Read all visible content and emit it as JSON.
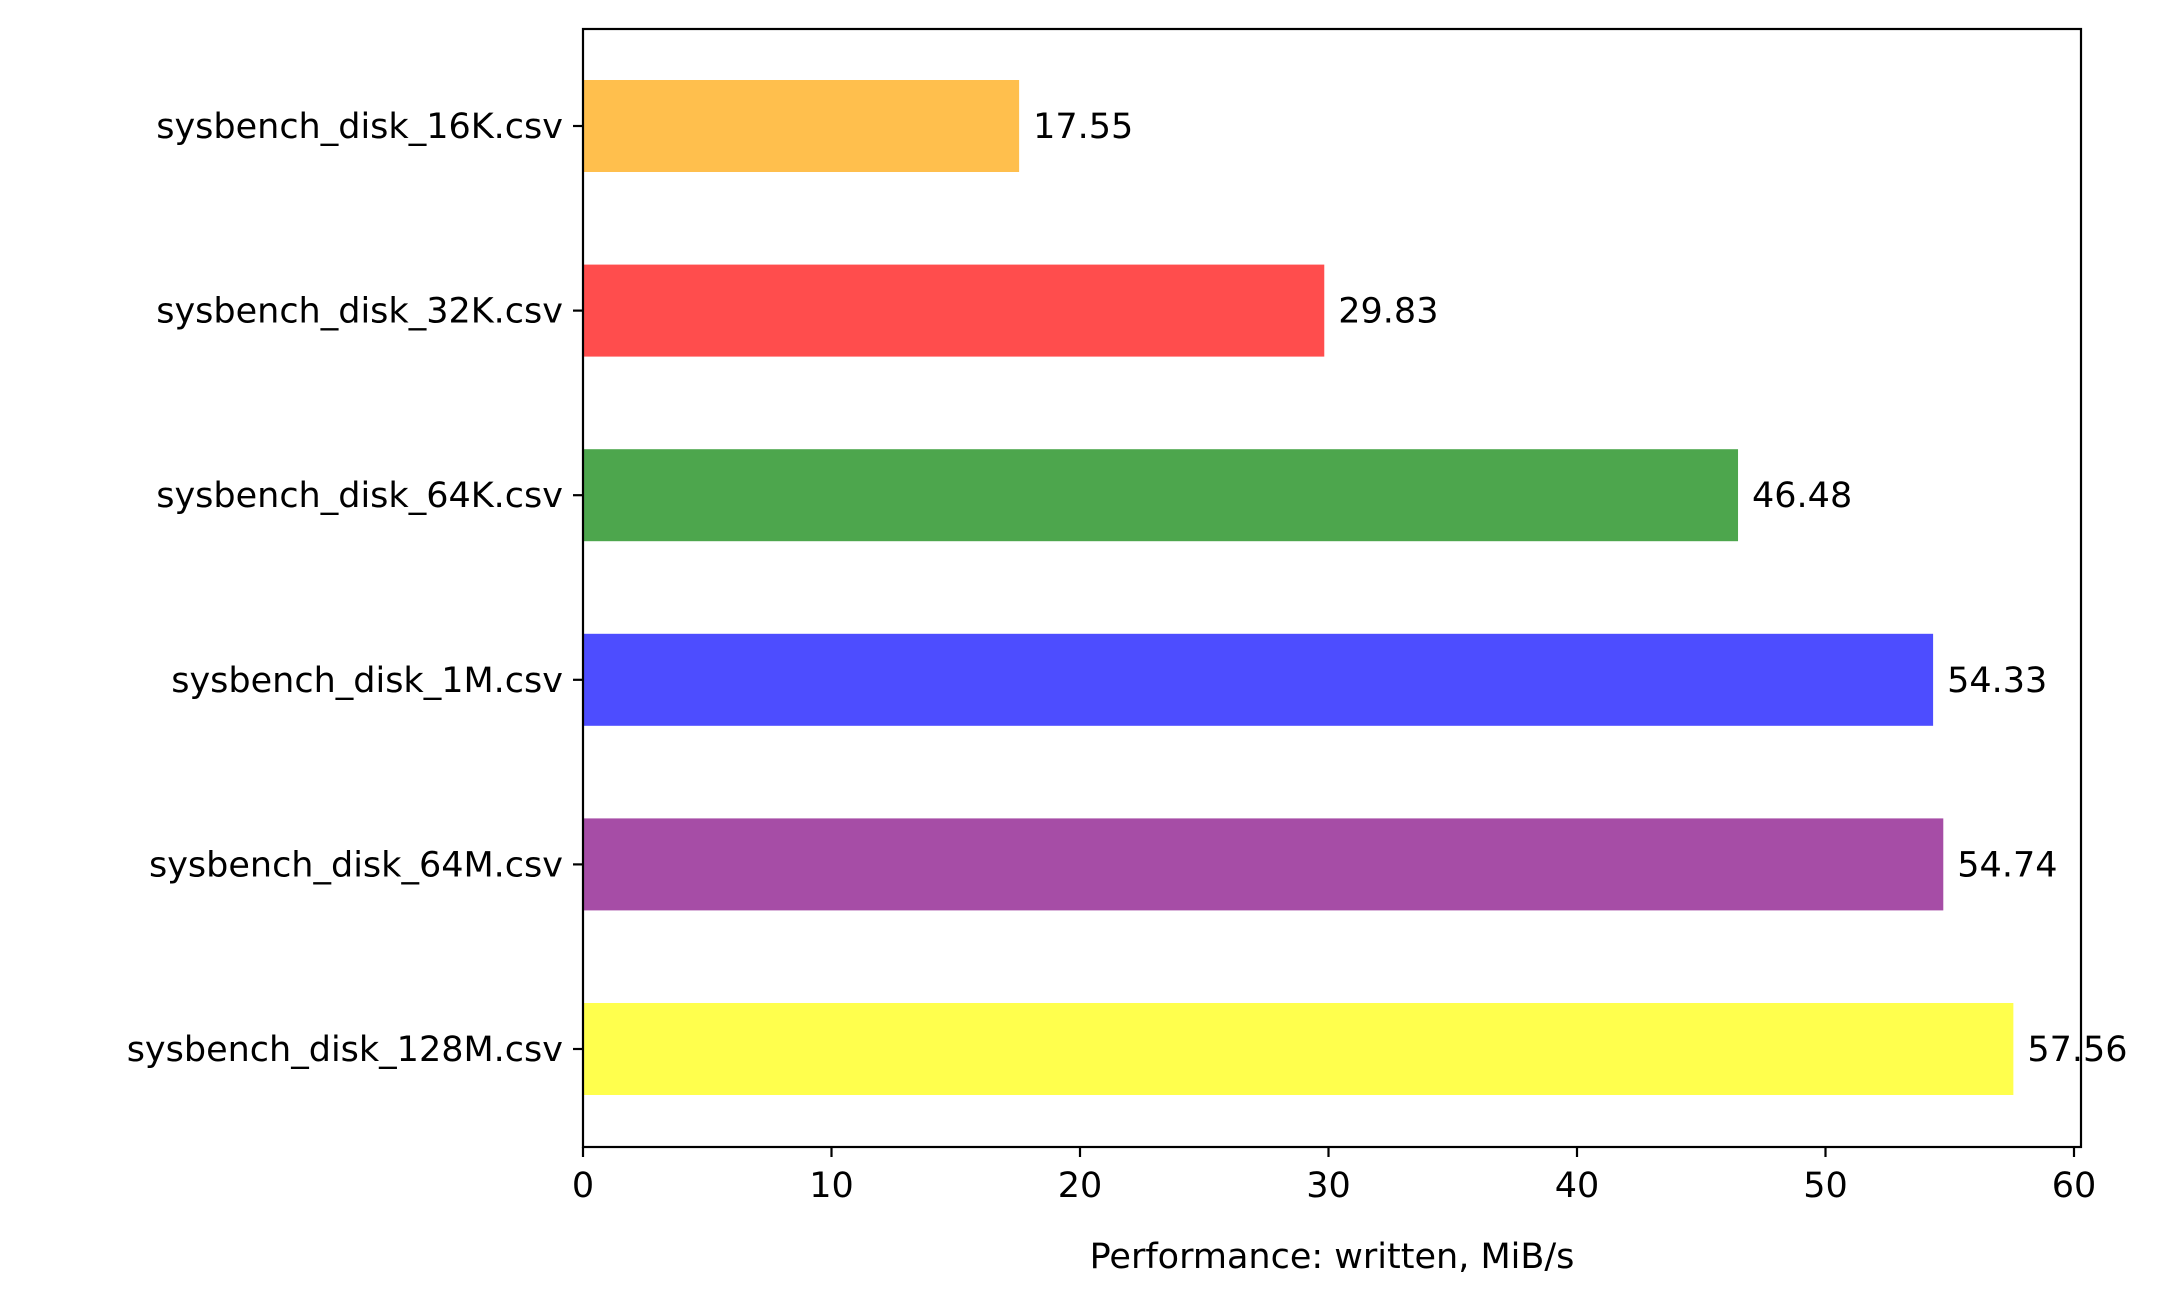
{
  "chart_data": {
    "type": "bar",
    "orientation": "horizontal",
    "categories": [
      "sysbench_disk_16K.csv",
      "sysbench_disk_32K.csv",
      "sysbench_disk_64K.csv",
      "sysbench_disk_1M.csv",
      "sysbench_disk_64M.csv",
      "sysbench_disk_128M.csv"
    ],
    "values": [
      17.55,
      29.83,
      46.48,
      54.33,
      54.74,
      57.56
    ],
    "value_labels": [
      "17.55",
      "29.83",
      "46.48",
      "54.33",
      "54.74",
      "57.56"
    ],
    "colors": [
      "#ffbf4d",
      "#ff4d4d",
      "#4da64d",
      "#4d4dff",
      "#a64da6",
      "#ffff4d"
    ],
    "xlabel": "Performance: written, MiB/s",
    "ylabel": "",
    "title": "",
    "xlim": [
      0,
      60.3
    ],
    "xticks": [
      0,
      10,
      20,
      30,
      40,
      50,
      60
    ],
    "xtick_labels": [
      "0",
      "10",
      "20",
      "30",
      "40",
      "50",
      "60"
    ],
    "grid": false,
    "legend": "none"
  }
}
